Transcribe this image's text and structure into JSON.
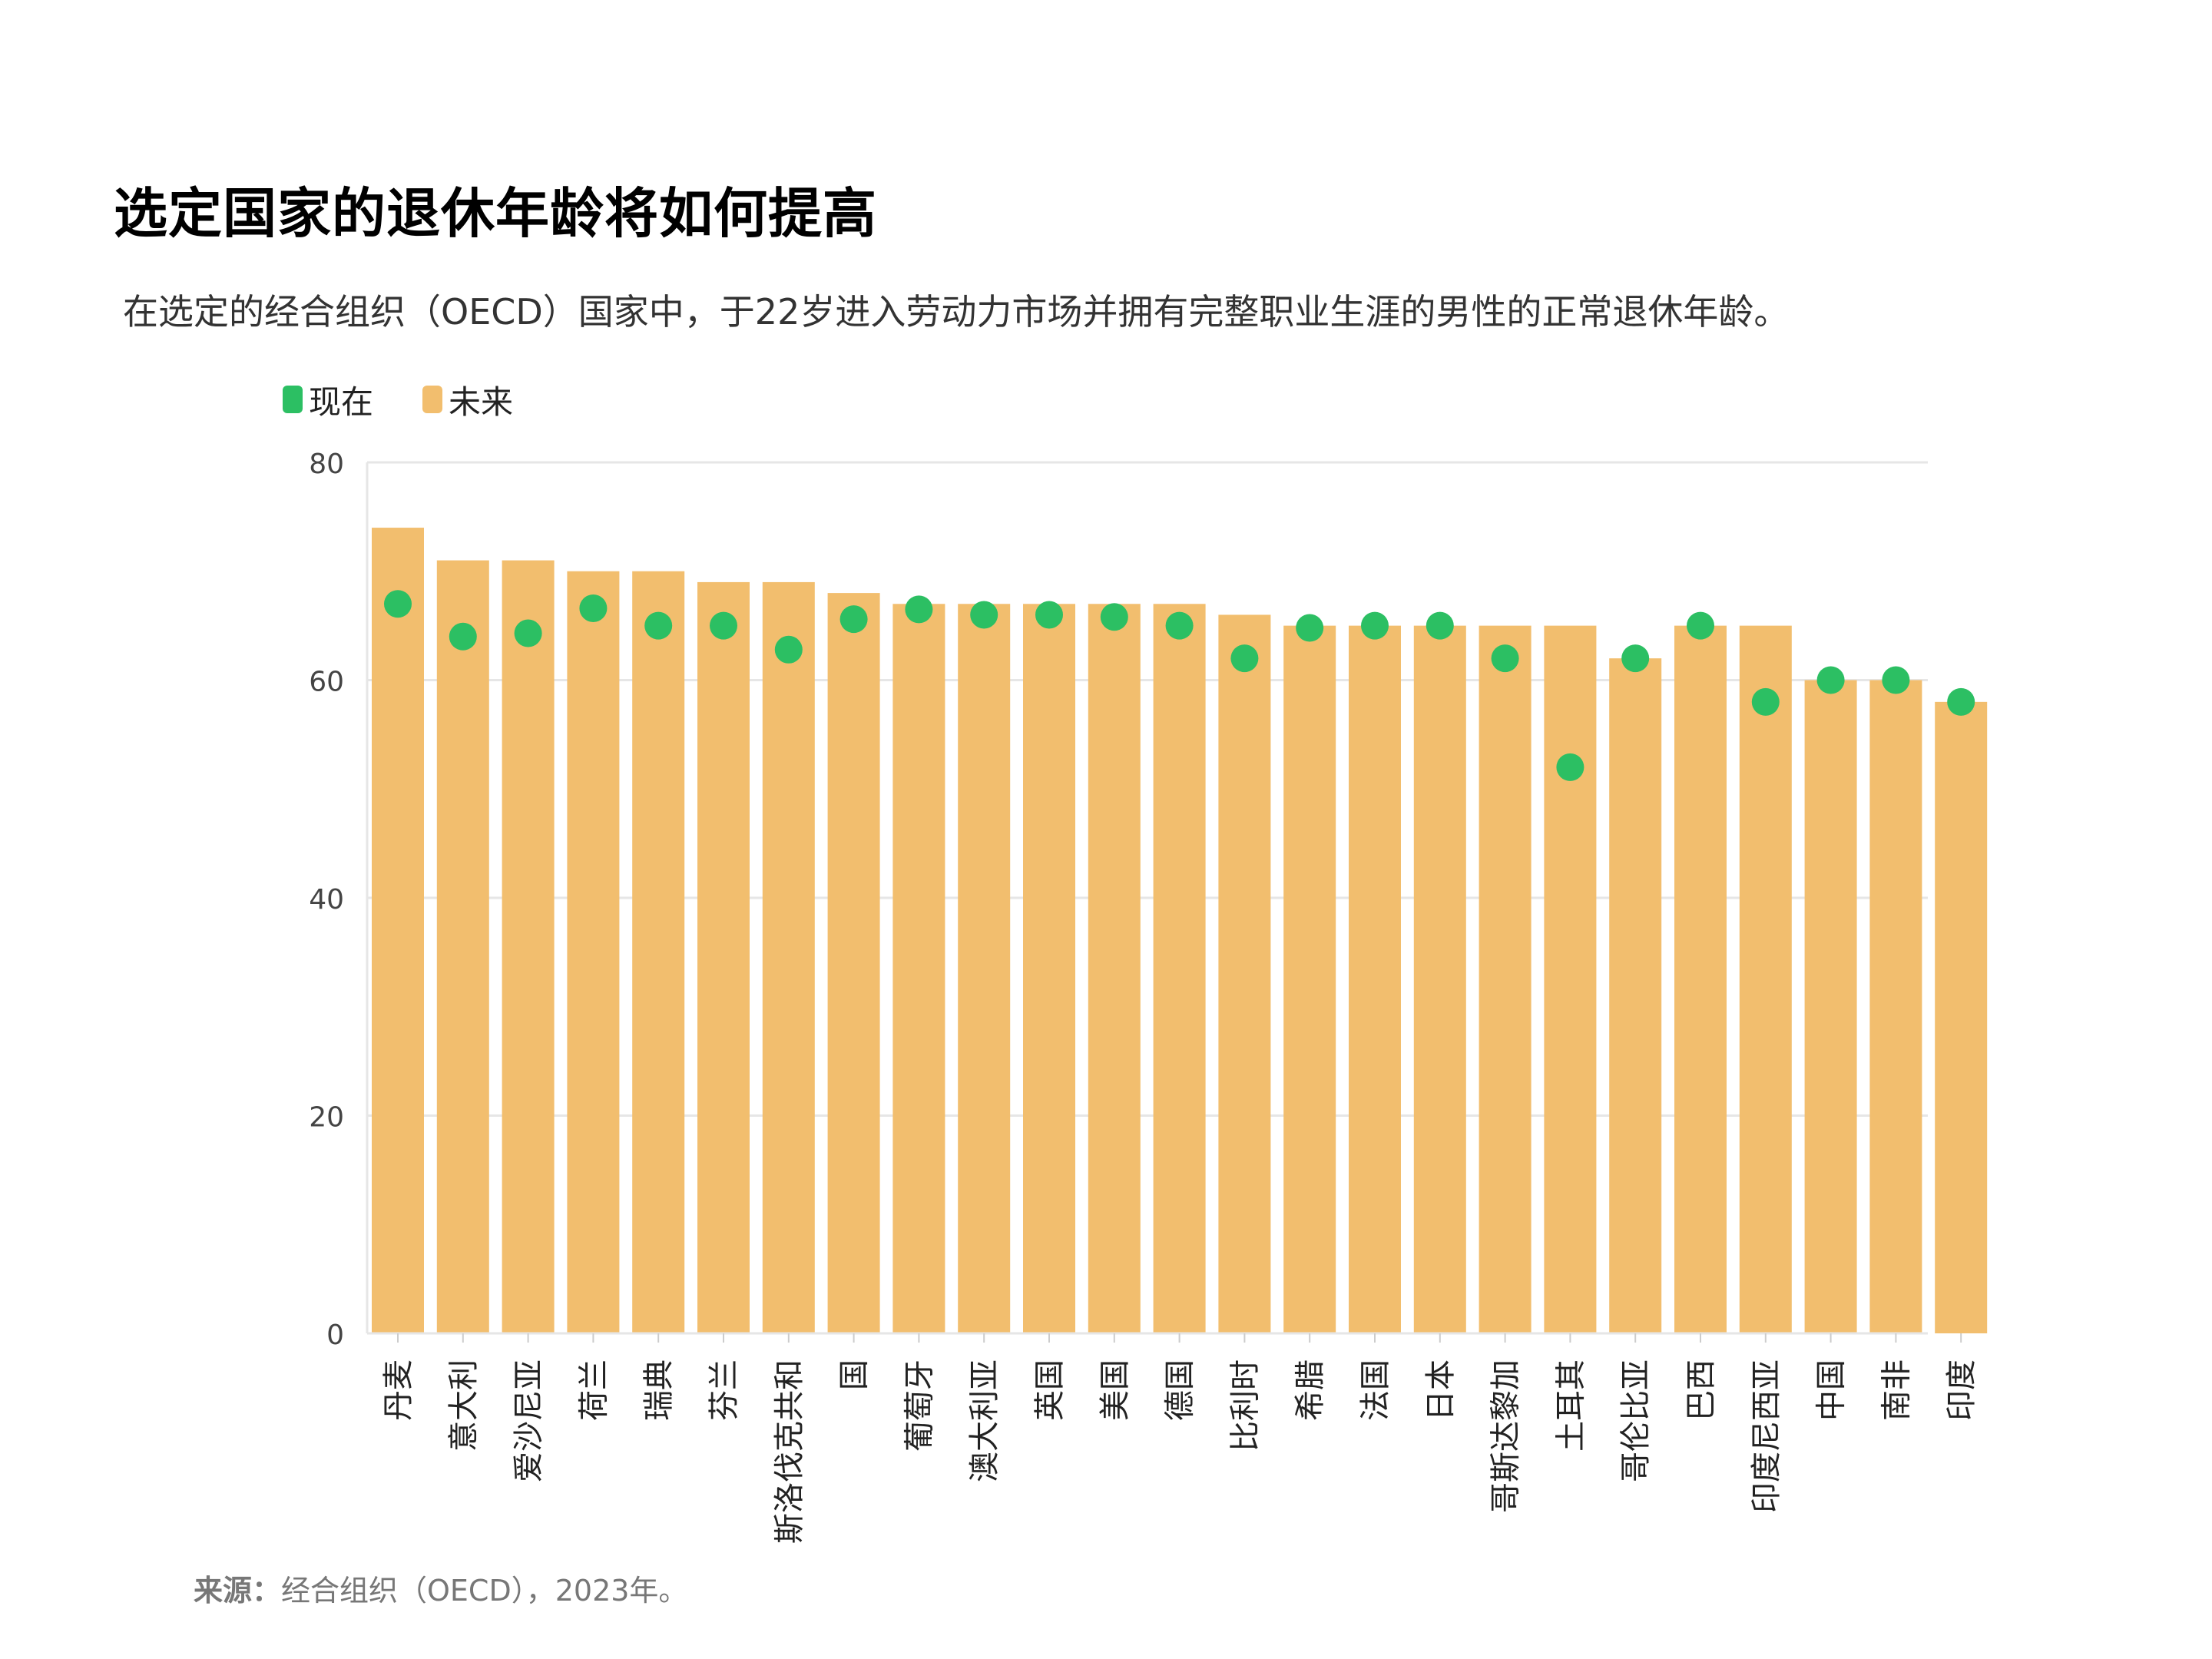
{
  "chart_data": {
    "type": "bar",
    "title": "选定国家的退休年龄将如何提高",
    "subtitle": "在选定的经合组织（OECD）国家中，于22岁进入劳动力市场并拥有完整职业生涯的男性的正常退休年龄。",
    "categories": [
      "丹麦",
      "意大利",
      "爱沙尼亚",
      "荷兰",
      "瑞典",
      "芬兰",
      "斯洛伐克共和",
      "国",
      "葡萄牙",
      "澳大利亚",
      "英国",
      "美国",
      "德国",
      "比利时",
      "希腊",
      "法国",
      "日本",
      "哥斯达黎加",
      "土耳其",
      "哥伦比亚",
      "巴西",
      "印度尼西亚",
      "中国",
      "南非",
      "印度"
    ],
    "series": [
      {
        "name": "未来",
        "kind": "bar",
        "color": "#F2BE6E",
        "values": [
          74,
          71,
          71,
          70,
          70,
          69,
          69,
          68,
          67,
          67,
          67,
          67,
          67,
          66,
          65,
          65,
          65,
          65,
          65,
          62,
          65,
          65,
          60,
          60,
          58
        ]
      },
      {
        "name": "现在",
        "kind": "dot",
        "color": "#2CBF63",
        "values": [
          67,
          64,
          64.3,
          66.6,
          65,
          65,
          62.8,
          65.6,
          66.5,
          66,
          66,
          65.8,
          65,
          62,
          64.8,
          65,
          65,
          62,
          52,
          62,
          65,
          58,
          60,
          60,
          58
        ]
      }
    ],
    "y_ticks": [
      0,
      20,
      40,
      60,
      80
    ],
    "ylim": [
      0,
      80
    ],
    "xlabel": "",
    "ylabel": "",
    "grid": true,
    "legend_position": "top-left"
  },
  "source": {
    "label": "来源：",
    "text": "经合组织（OECD），2023年。"
  }
}
